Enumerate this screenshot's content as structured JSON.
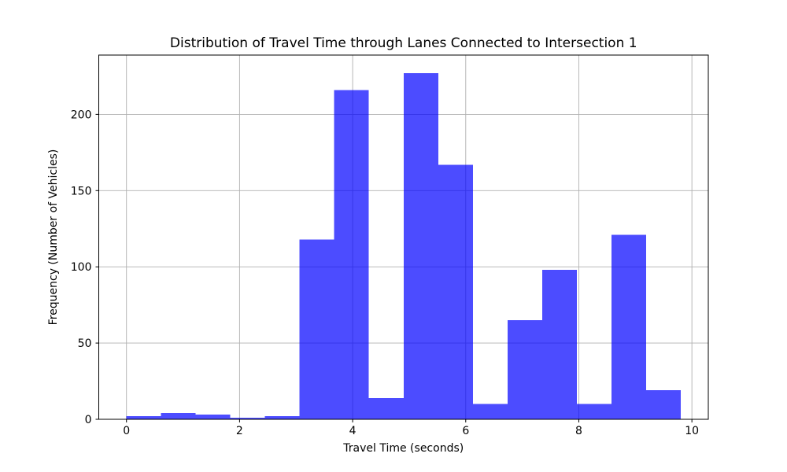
{
  "figure": {
    "background_color": "#FFFFFF",
    "frame_color": "#000000"
  },
  "chart_data": {
    "type": "bar",
    "subtype": "histogram",
    "title": "Distribution of Travel Time through Lanes Connected to Intersection 1",
    "xlabel": "Travel Time (seconds)",
    "ylabel": "Frequency (Number of Vehicles)",
    "bin_edges": [
      0,
      0.6125,
      1.225,
      1.8375,
      2.45,
      3.0625,
      3.675,
      4.2875,
      4.9,
      5.5125,
      6.125,
      6.7375,
      7.35,
      7.9625,
      8.575,
      9.1875,
      9.8
    ],
    "counts": [
      2,
      4,
      3,
      1,
      2,
      118,
      216,
      14,
      227,
      167,
      10,
      65,
      98,
      10,
      121,
      19
    ],
    "xticks": [
      0,
      2,
      4,
      6,
      8,
      10
    ],
    "yticks": [
      0,
      50,
      100,
      150,
      200
    ],
    "xlim": [
      -0.49,
      10.29
    ],
    "ylim": [
      0,
      238.9
    ],
    "grid": true,
    "legend_position": "none",
    "bar_color": "#0000FF",
    "bar_alpha": 0.7,
    "bar_color_effective": "#4D4DFF",
    "grid_color": "#B0B0B0",
    "tick_color": "#000000"
  }
}
